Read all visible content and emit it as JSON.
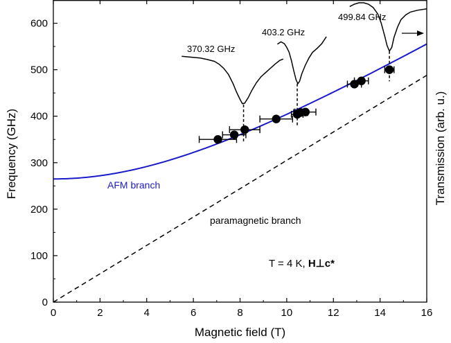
{
  "chart_data": {
    "type": "scatter",
    "xlabel": "Magnetic field (T)",
    "ylabel": "Frequency (GHz)",
    "y2label": "Transmission (arb. u.)",
    "xlim": [
      0,
      16
    ],
    "ylim": [
      0,
      650
    ],
    "x_ticks": [
      0,
      2,
      4,
      6,
      8,
      10,
      12,
      14,
      16
    ],
    "y_ticks": [
      0,
      100,
      200,
      300,
      400,
      500,
      600
    ],
    "grid": false,
    "legend": "none",
    "colors": {
      "afm": "#1a1acc",
      "para": "#000000",
      "points": "#000000",
      "spectra": "#000000"
    },
    "series": [
      {
        "kind": "points",
        "points": [
          {
            "x": 7.05,
            "y": 350,
            "xerr": 0.8
          },
          {
            "x": 7.75,
            "y": 360,
            "xerr": 0.5
          },
          {
            "x": 8.2,
            "y": 371,
            "xerr": 0.65
          },
          {
            "x": 9.55,
            "y": 394,
            "xerr": 0.7
          },
          {
            "x": 10.45,
            "y": 404,
            "xerr": 0.25
          },
          {
            "x": 10.6,
            "y": 408,
            "xerr": 0.3
          },
          {
            "x": 10.8,
            "y": 409,
            "xerr": 0.45
          },
          {
            "x": 12.9,
            "y": 469,
            "xerr": 0.3
          },
          {
            "x": 13.2,
            "y": 476,
            "xerr": 0.3
          },
          {
            "x": 14.4,
            "y": 500,
            "xerr": 0.2
          }
        ]
      },
      {
        "kind": "afm-curve",
        "f0": 265,
        "slope": 30.5
      },
      {
        "kind": "paramagnetic-line",
        "slope": 30.5
      }
    ],
    "spectra": [
      {
        "label": "370.32 GHz",
        "dip_x": 8.15,
        "dip_y": 425,
        "points": [
          [
            5.5,
            529
          ],
          [
            5.9,
            527
          ],
          [
            6.3,
            525
          ],
          [
            6.6,
            522
          ],
          [
            6.9,
            518
          ],
          [
            7.1,
            512
          ],
          [
            7.3,
            503
          ],
          [
            7.5,
            490
          ],
          [
            7.7,
            470
          ],
          [
            7.85,
            452
          ],
          [
            8.0,
            436
          ],
          [
            8.1,
            427
          ],
          [
            8.2,
            428
          ],
          [
            8.35,
            440
          ],
          [
            8.5,
            455
          ],
          [
            8.7,
            472
          ],
          [
            8.9,
            485
          ],
          [
            9.1,
            494
          ],
          [
            9.3,
            503
          ],
          [
            9.5,
            512
          ],
          [
            9.7,
            520
          ],
          [
            9.85,
            523
          ]
        ]
      },
      {
        "label": "403.2 GHz",
        "dip_x": 10.45,
        "dip_y": 470,
        "points": [
          [
            9.6,
            555
          ],
          [
            9.75,
            560
          ],
          [
            9.9,
            556
          ],
          [
            10.0,
            548
          ],
          [
            10.1,
            538
          ],
          [
            10.2,
            520
          ],
          [
            10.3,
            498
          ],
          [
            10.4,
            478
          ],
          [
            10.48,
            470
          ],
          [
            10.55,
            475
          ],
          [
            10.65,
            492
          ],
          [
            10.8,
            510
          ],
          [
            10.95,
            525
          ],
          [
            11.1,
            537
          ],
          [
            11.3,
            546
          ],
          [
            11.5,
            556
          ],
          [
            11.7,
            571
          ]
        ]
      },
      {
        "label": "499.84 GHz",
        "dip_x": 14.4,
        "dip_y": 540,
        "points": [
          [
            12.7,
            636
          ],
          [
            12.9,
            641
          ],
          [
            13.1,
            644
          ],
          [
            13.3,
            644
          ],
          [
            13.5,
            641
          ],
          [
            13.7,
            634
          ],
          [
            13.9,
            620
          ],
          [
            14.05,
            600
          ],
          [
            14.2,
            572
          ],
          [
            14.3,
            552
          ],
          [
            14.4,
            540
          ],
          [
            14.5,
            548
          ],
          [
            14.6,
            570
          ],
          [
            14.75,
            592
          ],
          [
            14.9,
            608
          ],
          [
            15.1,
            618
          ],
          [
            15.3,
            624
          ],
          [
            15.6,
            628
          ],
          [
            16.0,
            631
          ]
        ]
      }
    ],
    "annotations": {
      "afm_branch": "AFM branch",
      "paramagnetic_branch": "paramagnetic branch",
      "temperature_prefix": "T = 4 K, ",
      "field_orientation": "H⊥c*"
    }
  }
}
